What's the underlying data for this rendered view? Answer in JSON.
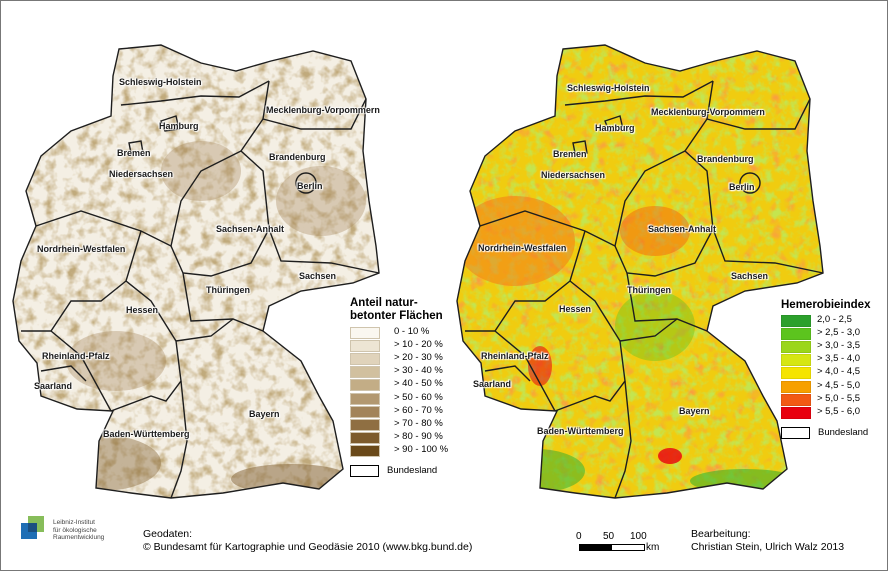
{
  "left_map": {
    "labels": [
      "Schleswig-Holstein",
      "Mecklenburg-Vorpommern",
      "Hamburg",
      "Bremen",
      "Brandenburg",
      "Niedersachsen",
      "Berlin",
      "Sachsen-Anhalt",
      "Nordrhein-Westfalen",
      "Sachsen",
      "Thüringen",
      "Hessen",
      "Rheinland-Pfalz",
      "Saarland",
      "Bayern",
      "Baden-Württemberg"
    ],
    "legend": {
      "title_line1": "Anteil natur-",
      "title_line2": "betonter Flächen",
      "classes": [
        {
          "label": "0 - 10 %",
          "color": "#faf7f0"
        },
        {
          "label": "> 10 - 20 %",
          "color": "#ede5d4"
        },
        {
          "label": "> 20 - 30 %",
          "color": "#e0d3bb"
        },
        {
          "label": "> 30 - 40 %",
          "color": "#d1c09f"
        },
        {
          "label": "> 40 - 50 %",
          "color": "#c3ad86"
        },
        {
          "label": "> 50 - 60 %",
          "color": "#b29870"
        },
        {
          "label": "> 60 - 70 %",
          "color": "#a2845a"
        },
        {
          "label": "> 70 - 80 %",
          "color": "#8f6f42"
        },
        {
          "label": "> 80 - 90 %",
          "color": "#7d5b2c"
        },
        {
          "label": "> 90 - 100 %",
          "color": "#6a4919"
        }
      ],
      "boundary_label": "Bundesland"
    }
  },
  "right_map": {
    "labels": [
      "Schleswig-Holstein",
      "Mecklenburg-Vorpommern",
      "Hamburg",
      "Bremen",
      "Brandenburg",
      "Niedersachsen",
      "Berlin",
      "Sachsen-Anhalt",
      "Nordrhein-Westfalen",
      "Sachsen",
      "Thüringen",
      "Hessen",
      "Rheinland-Pfalz",
      "Saarland",
      "Bayern",
      "Baden-Württemberg"
    ],
    "legend": {
      "title": "Hemerobieindex",
      "classes": [
        {
          "label": "2,0 - 2,5",
          "color": "#2ca02c"
        },
        {
          "label": "> 2,5 - 3,0",
          "color": "#5cc41e"
        },
        {
          "label": "> 3,0 - 3,5",
          "color": "#9bd61a"
        },
        {
          "label": "> 3,5 - 4,0",
          "color": "#d6e612"
        },
        {
          "label": "> 4,0 - 4,5",
          "color": "#f5e400"
        },
        {
          "label": "> 4,5 - 5,0",
          "color": "#f7a000"
        },
        {
          "label": "> 5,0 - 5,5",
          "color": "#f25a14"
        },
        {
          "label": "> 5,5 - 6,0",
          "color": "#e8000e"
        }
      ],
      "boundary_label": "Bundesland"
    }
  },
  "logo_text": [
    "Leibniz-Institut",
    "für ökologische",
    "Raumentwicklung"
  ],
  "footer": {
    "geodata_line1": "Geodaten:",
    "geodata_line2": "© Bundesamt für Kartographie und Geodäsie 2010 (www.bkg.bund.de)",
    "bearbeitung_line1": "Bearbeitung:",
    "bearbeitung_line2": "Christian Stein, Ulrich Walz 2013"
  },
  "scale": {
    "ticks": [
      "0",
      "50",
      "100"
    ],
    "unit": "km"
  }
}
